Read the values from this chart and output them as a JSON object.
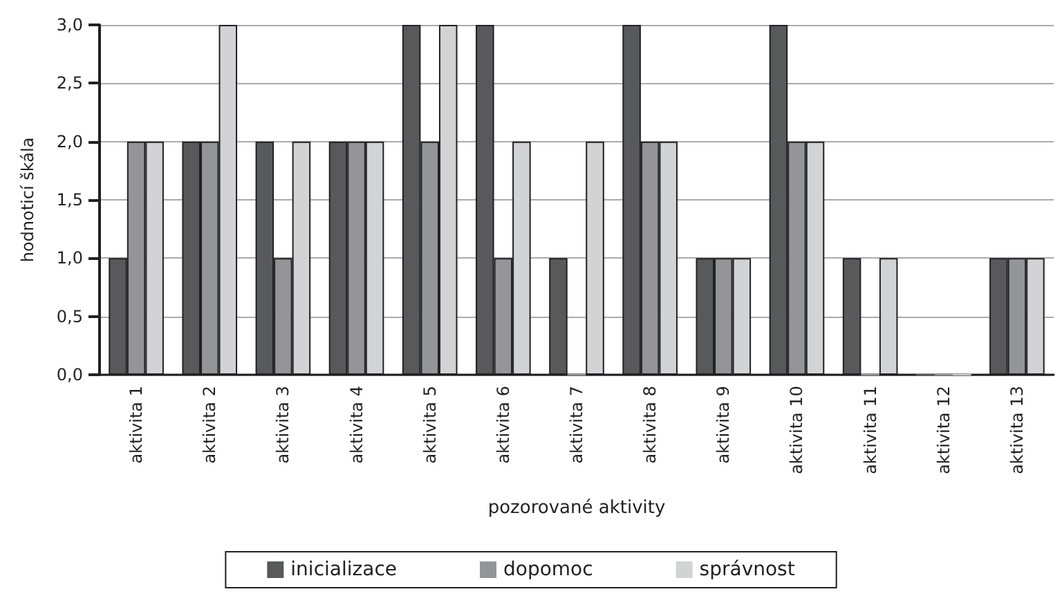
{
  "chart_data": {
    "type": "bar",
    "xlabel": "pozorované aktivity",
    "ylabel": "hodnoticí škála",
    "categories": [
      "aktivita 1",
      "aktivita 2",
      "aktivita 3",
      "aktivita 4",
      "aktivita 5",
      "aktivita 6",
      "aktivita 7",
      "aktivita 8",
      "aktivita 9",
      "aktivita 10",
      "aktivita 11",
      "aktivita 12",
      "aktivita 13"
    ],
    "series": [
      {
        "name": "inicializace",
        "color": "#58595b",
        "values": [
          1,
          2,
          2,
          2,
          3,
          3,
          1,
          3,
          1,
          3,
          1,
          0,
          1
        ]
      },
      {
        "name": "dopomoc",
        "color": "#939598",
        "values": [
          2,
          2,
          1,
          2,
          2,
          1,
          0,
          2,
          1,
          2,
          0,
          0,
          1
        ]
      },
      {
        "name": "správnost",
        "color": "#d1d3d4",
        "values": [
          2,
          3,
          2,
          2,
          3,
          2,
          2,
          2,
          1,
          2,
          1,
          0,
          1
        ]
      }
    ],
    "ylim": [
      0,
      3
    ],
    "yticks": [
      {
        "value": 0,
        "label": "0,0"
      },
      {
        "value": 0.5,
        "label": "0,5"
      },
      {
        "value": 1,
        "label": "1,0"
      },
      {
        "value": 1.5,
        "label": "1,5"
      },
      {
        "value": 2,
        "label": "2,0"
      },
      {
        "value": 2.5,
        "label": "2,5"
      },
      {
        "value": 3,
        "label": "3,0"
      }
    ],
    "grid": "y",
    "legend": "bottom"
  }
}
